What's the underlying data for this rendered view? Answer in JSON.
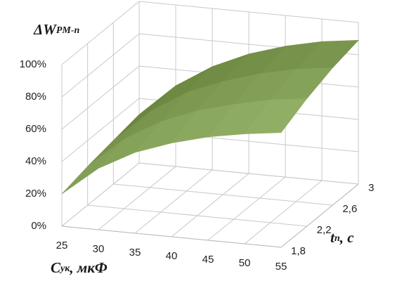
{
  "chart_data": {
    "type": "surface",
    "z_label": {
      "main": "ΔW",
      "sub": "PM-n"
    },
    "x_label": {
      "main": "C",
      "sub": "ук",
      "rest": ", мкФ"
    },
    "depth_label": {
      "main": "t",
      "sub": "n",
      "rest": ", c"
    },
    "categories": [
      "25",
      "30",
      "35",
      "40",
      "45",
      "50",
      "55"
    ],
    "series": [
      {
        "name": "1,8",
        "values": [
          20,
          38,
          50,
          58,
          64,
          68,
          71
        ]
      },
      {
        "name": "2,2",
        "values": [
          24,
          43,
          56,
          65,
          71,
          76,
          79
        ]
      },
      {
        "name": "2,6",
        "values": [
          27,
          47,
          61,
          70,
          77,
          82,
          85
        ]
      },
      {
        "name": "3",
        "values": [
          30,
          50,
          64,
          74,
          81,
          86,
          89
        ]
      }
    ],
    "ylim": [
      0,
      100
    ],
    "yticks": [
      {
        "value": 0,
        "label": "0%"
      },
      {
        "value": 20,
        "label": "20%"
      },
      {
        "value": 40,
        "label": "40%"
      },
      {
        "value": 60,
        "label": "60%"
      },
      {
        "value": 80,
        "label": "80%"
      },
      {
        "value": 100,
        "label": "100%"
      }
    ],
    "grid": true,
    "colors": [
      "#a6c37a",
      "#5f7a33"
    ]
  }
}
